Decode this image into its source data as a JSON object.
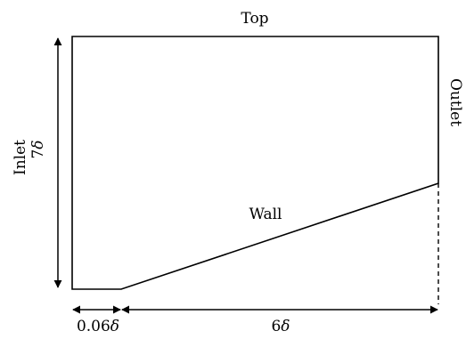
{
  "labels": {
    "top": "Top",
    "inlet": "Inlet",
    "outlet": "Outlet",
    "wall": "Wall"
  },
  "dimensions": {
    "height": {
      "coefficient": "7",
      "symbol": "δ"
    },
    "inlet_length": {
      "coefficient": "0.06",
      "symbol": "δ"
    },
    "wall_length": {
      "coefficient": "6",
      "symbol": "δ"
    }
  },
  "colors": {
    "stroke": "#000000",
    "background": "#ffffff"
  }
}
